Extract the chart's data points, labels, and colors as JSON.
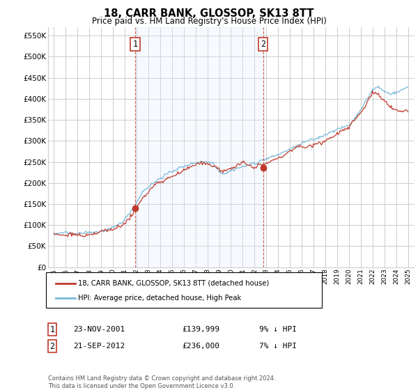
{
  "title": "18, CARR BANK, GLOSSOP, SK13 8TT",
  "subtitle": "Price paid vs. HM Land Registry's House Price Index (HPI)",
  "legend_line1": "18, CARR BANK, GLOSSOP, SK13 8TT (detached house)",
  "legend_line2": "HPI: Average price, detached house, High Peak",
  "transaction1_label": "1",
  "transaction1_date": "23-NOV-2001",
  "transaction1_price": "£139,999",
  "transaction1_hpi": "9% ↓ HPI",
  "transaction2_label": "2",
  "transaction2_date": "21-SEP-2012",
  "transaction2_price": "£236,000",
  "transaction2_hpi": "7% ↓ HPI",
  "footnote": "Contains HM Land Registry data © Crown copyright and database right 2024.\nThis data is licensed under the Open Government Licence v3.0.",
  "vline1_x": 2001.9,
  "vline2_x": 2012.72,
  "point1_x": 2001.9,
  "point1_y": 139999,
  "point2_x": 2012.72,
  "point2_y": 236000,
  "ylim": [
    0,
    570000
  ],
  "xlim": [
    1994.5,
    2025.5
  ],
  "hpi_color": "#7ab8d9",
  "price_color": "#c0392b",
  "vline_color": "#c0392b",
  "shade_color": "#ddeeff",
  "grid_color": "#cccccc",
  "background_color": "#ffffff",
  "yticks": [
    0,
    50000,
    100000,
    150000,
    200000,
    250000,
    300000,
    350000,
    400000,
    450000,
    500000,
    550000
  ],
  "ytick_labels": [
    "£0",
    "£50K",
    "£100K",
    "£150K",
    "£200K",
    "£250K",
    "£300K",
    "£350K",
    "£400K",
    "£450K",
    "£500K",
    "£550K"
  ]
}
